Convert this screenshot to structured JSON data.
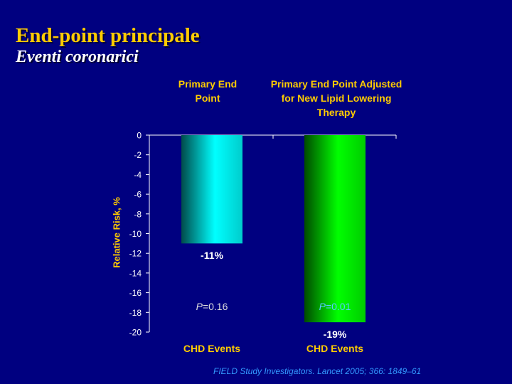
{
  "slide": {
    "title": "End-point principale",
    "subtitle": "Eventi coronarici",
    "citation": "FIELD Study Investigators. Lancet 2005; 366: 1849–61"
  },
  "colors": {
    "background": "#000080",
    "title": "#FFCC00",
    "bar1": "#00FFFF",
    "bar2": "#00FF00",
    "p1_text": "#DDDDDD",
    "p2_text": "#55CCFF"
  },
  "chart_data": {
    "type": "bar",
    "ylabel": "Relative Risk, %",
    "ylim": [
      -20,
      0
    ],
    "yticks": [
      0,
      -2,
      -4,
      -6,
      -8,
      -10,
      -12,
      -14,
      -16,
      -18,
      -20
    ],
    "grid": false,
    "series": [
      {
        "header": "Primary End Point",
        "category": "CHD Events",
        "value": -11,
        "data_label": "-11%",
        "p_symbol": "P",
        "p_value": "=0.16",
        "color": "#00FFFF"
      },
      {
        "header": "Primary End Point Adjusted for New Lipid Lowering Therapy",
        "category": "CHD Events",
        "value": -19,
        "data_label": "-19%",
        "p_symbol": "P",
        "p_value": "=0.01",
        "color": "#00FF00"
      }
    ]
  }
}
